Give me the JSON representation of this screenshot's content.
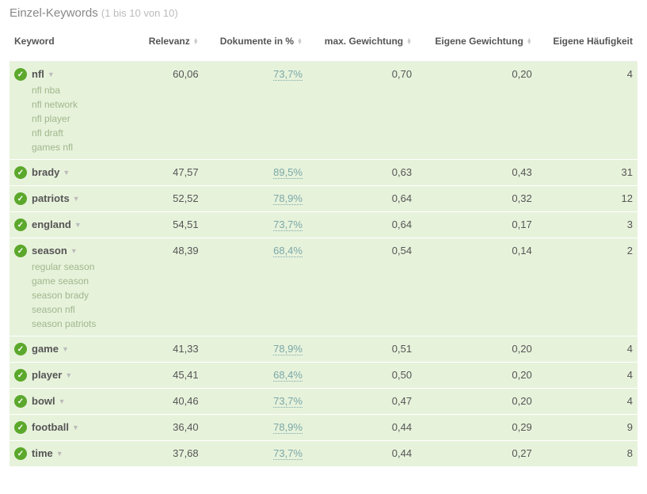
{
  "title": "Einzel-Keywords",
  "subtitle": "(1 bis 10 von 10)",
  "columns": {
    "keyword": "Keyword",
    "relevanz": "Relevanz",
    "dokumente": "Dokumente in %",
    "maxGewichtung": "max. Gewichtung",
    "eigeneGewichtung": "Eigene Gewichtung",
    "eigeneHaeufigkeit": "Eigene Häufigkeit"
  },
  "rows": [
    {
      "keyword": "nfl",
      "relevanz": "60,06",
      "dokumente": "73,7%",
      "maxG": "0,70",
      "eigG": "0,20",
      "eigH": "4",
      "subs": [
        "nfl nba",
        "nfl network",
        "nfl player",
        "nfl draft",
        "games nfl"
      ]
    },
    {
      "keyword": "brady",
      "relevanz": "47,57",
      "dokumente": "89,5%",
      "maxG": "0,63",
      "eigG": "0,43",
      "eigH": "31",
      "subs": []
    },
    {
      "keyword": "patriots",
      "relevanz": "52,52",
      "dokumente": "78,9%",
      "maxG": "0,64",
      "eigG": "0,32",
      "eigH": "12",
      "subs": []
    },
    {
      "keyword": "england",
      "relevanz": "54,51",
      "dokumente": "73,7%",
      "maxG": "0,64",
      "eigG": "0,17",
      "eigH": "3",
      "subs": []
    },
    {
      "keyword": "season",
      "relevanz": "48,39",
      "dokumente": "68,4%",
      "maxG": "0,54",
      "eigG": "0,14",
      "eigH": "2",
      "subs": [
        "regular season",
        "game season",
        "season brady",
        "season nfl",
        "season patriots"
      ]
    },
    {
      "keyword": "game",
      "relevanz": "41,33",
      "dokumente": "78,9%",
      "maxG": "0,51",
      "eigG": "0,20",
      "eigH": "4",
      "subs": []
    },
    {
      "keyword": "player",
      "relevanz": "45,41",
      "dokumente": "68,4%",
      "maxG": "0,50",
      "eigG": "0,20",
      "eigH": "4",
      "subs": []
    },
    {
      "keyword": "bowl",
      "relevanz": "40,46",
      "dokumente": "73,7%",
      "maxG": "0,47",
      "eigG": "0,20",
      "eigH": "4",
      "subs": []
    },
    {
      "keyword": "football",
      "relevanz": "36,40",
      "dokumente": "78,9%",
      "maxG": "0,44",
      "eigG": "0,29",
      "eigH": "9",
      "subs": []
    },
    {
      "keyword": "time",
      "relevanz": "37,68",
      "dokumente": "73,7%",
      "maxG": "0,44",
      "eigG": "0,27",
      "eigH": "8",
      "subs": []
    }
  ]
}
